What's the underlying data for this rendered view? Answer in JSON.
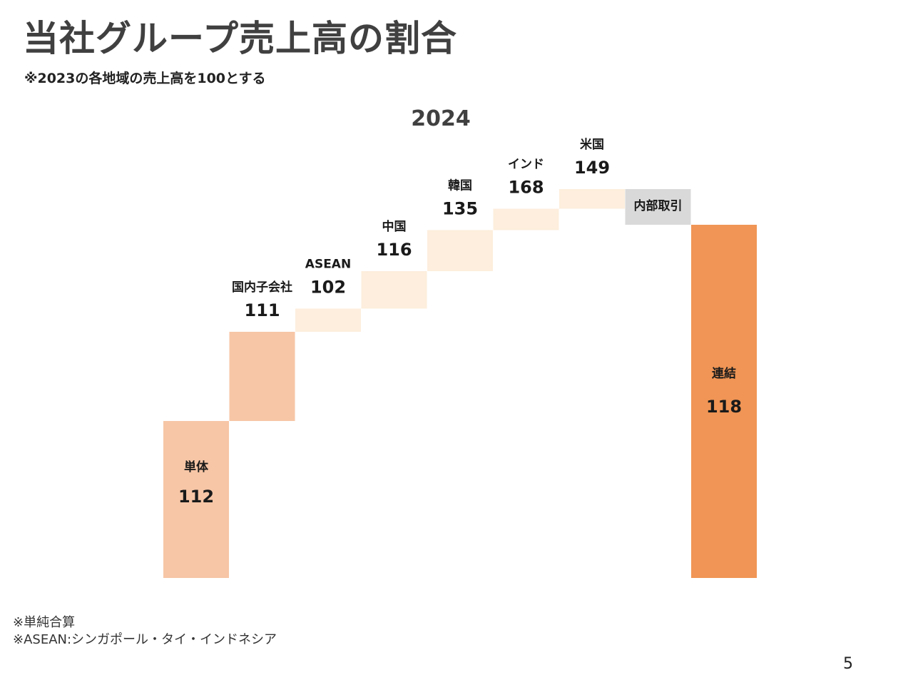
{
  "slide": {
    "title": "当社グループ売上高の割合",
    "subtitle": "※2023の各地域の売上高を100とする",
    "notes": [
      "※単純合算",
      "※ASEAN:シンガポール・タイ・インドネシア"
    ],
    "page_number": "5"
  },
  "chart_data": {
    "type": "bar",
    "title": "2024",
    "subtype": "waterfall",
    "categories": [
      "単体",
      "国内子会社",
      "ASEAN",
      "中国",
      "韓国",
      "インド",
      "米国",
      "内部取引",
      "連結"
    ],
    "values": [
      "112",
      "111",
      "102",
      "116",
      "135",
      "168",
      "149",
      "",
      "118"
    ],
    "steps": [
      {
        "label": "単体",
        "value": "112",
        "kind": "total",
        "start": 0,
        "end": 44
      },
      {
        "label": "国内子会社",
        "value": "111",
        "kind": "increase",
        "start": 44,
        "end": 69
      },
      {
        "label": "ASEAN",
        "value": "102",
        "kind": "increase",
        "start": 69,
        "end": 75.5
      },
      {
        "label": "中国",
        "value": "116",
        "kind": "increase",
        "start": 75.5,
        "end": 86
      },
      {
        "label": "韓国",
        "value": "135",
        "kind": "increase",
        "start": 86,
        "end": 97.5
      },
      {
        "label": "インド",
        "value": "168",
        "kind": "increase",
        "start": 97.5,
        "end": 103.5
      },
      {
        "label": "米国",
        "value": "149",
        "kind": "increase",
        "start": 103.5,
        "end": 109
      },
      {
        "label": "内部取引",
        "value": "",
        "kind": "decrease",
        "start": 109,
        "end": 99
      },
      {
        "label": "連結",
        "value": "118",
        "kind": "total",
        "start": 0,
        "end": 99
      }
    ],
    "colors": {
      "total_light": "#F7C6A6",
      "increase_large": "#F7C6A6",
      "increase_small": "#FDEEDD",
      "decrease": "#D9D9D9",
      "consolidated": "#F09555",
      "consolidated_text": "#FFFFFF"
    }
  }
}
